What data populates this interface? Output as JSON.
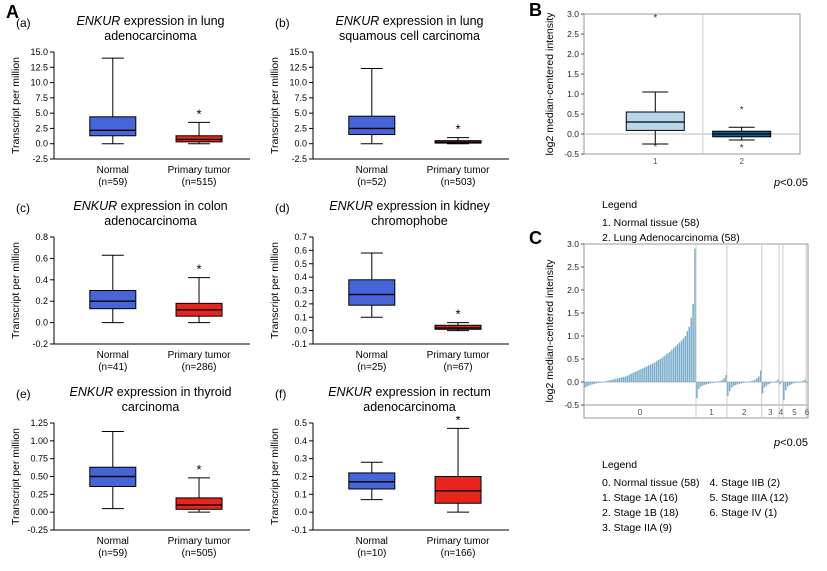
{
  "figure": {
    "panel_a_label": "A",
    "panel_b_label": "B",
    "panel_c_label": "C"
  },
  "colors": {
    "normal_box": "#4565d8",
    "tumor_box": "#e8251d",
    "b_box_1": "#b9d7ea",
    "b_box_2": "#175f8f",
    "c_bars": "#76abc9",
    "frame_gray": "#999999"
  },
  "chart_data": [
    {
      "id": "a",
      "type": "boxplot",
      "panel": "A",
      "label": "(a)",
      "title_gene": "ENKUR",
      "title_rest": " expression in lung adenocarcinoma",
      "ylabel": "Transcript per million",
      "ylim": [
        -2.5,
        15.0
      ],
      "yticks": [
        15.0,
        12.5,
        10.0,
        7.5,
        5.0,
        2.5,
        0.0,
        -2.5
      ],
      "ytick_decimals": 1,
      "groups": [
        {
          "label": "Normal",
          "sublabel": "(n=59)",
          "color": "#4565d8",
          "whisker_low": 0.0,
          "q1": 1.3,
          "median": 2.2,
          "q3": 4.4,
          "whisker_high": 14.0,
          "significant": false
        },
        {
          "label": "Primary tumor",
          "sublabel": "(n=515)",
          "color": "#e8251d",
          "whisker_low": 0.0,
          "q1": 0.3,
          "median": 0.7,
          "q3": 1.3,
          "whisker_high": 3.5,
          "significant": true
        }
      ]
    },
    {
      "id": "b",
      "type": "boxplot",
      "panel": "A",
      "label": "(b)",
      "title_gene": "ENKUR",
      "title_rest": " expression in lung squamous cell carcinoma",
      "ylabel": "Transcript per million",
      "ylim": [
        -2.5,
        15.0
      ],
      "yticks": [
        15.0,
        12.5,
        10.0,
        7.5,
        5.0,
        2.5,
        0.0,
        -2.5
      ],
      "ytick_decimals": 1,
      "groups": [
        {
          "label": "Normal",
          "sublabel": "(n=52)",
          "color": "#4565d8",
          "whisker_low": 0.0,
          "q1": 1.5,
          "median": 2.5,
          "q3": 4.5,
          "whisker_high": 12.3,
          "significant": false
        },
        {
          "label": "Primary tumor",
          "sublabel": "(n=503)",
          "color": "#e8251d",
          "whisker_low": 0.0,
          "q1": 0.1,
          "median": 0.25,
          "q3": 0.5,
          "whisker_high": 1.0,
          "significant": true
        }
      ]
    },
    {
      "id": "c",
      "type": "boxplot",
      "panel": "A",
      "label": "(c)",
      "title_gene": "ENKUR",
      "title_rest": " expression in colon adenocarcinoma",
      "ylabel": "Transcript per million",
      "ylim": [
        -0.2,
        0.8
      ],
      "yticks": [
        0.8,
        0.6,
        0.4,
        0.2,
        0.0,
        -0.2
      ],
      "ytick_decimals": 1,
      "groups": [
        {
          "label": "Normal",
          "sublabel": "(n=41)",
          "color": "#4565d8",
          "whisker_low": 0.0,
          "q1": 0.13,
          "median": 0.2,
          "q3": 0.3,
          "whisker_high": 0.63,
          "significant": false
        },
        {
          "label": "Primary tumor",
          "sublabel": "(n=286)",
          "color": "#e8251d",
          "whisker_low": 0.0,
          "q1": 0.06,
          "median": 0.12,
          "q3": 0.18,
          "whisker_high": 0.42,
          "significant": true
        }
      ]
    },
    {
      "id": "d",
      "type": "boxplot",
      "panel": "A",
      "label": "(d)",
      "title_gene": "ENKUR",
      "title_rest": " expression in kidney chromophobe",
      "ylabel": "Transcript per million",
      "ylim": [
        -0.1,
        0.7
      ],
      "yticks": [
        0.7,
        0.6,
        0.5,
        0.4,
        0.3,
        0.2,
        0.1,
        0.0,
        -0.1
      ],
      "ytick_decimals": 1,
      "groups": [
        {
          "label": "Normal",
          "sublabel": "(n=25)",
          "color": "#4565d8",
          "whisker_low": 0.1,
          "q1": 0.19,
          "median": 0.27,
          "q3": 0.38,
          "whisker_high": 0.58,
          "significant": false
        },
        {
          "label": "Primary tumor",
          "sublabel": "(n=67)",
          "color": "#e8251d",
          "whisker_low": 0.0,
          "q1": 0.01,
          "median": 0.02,
          "q3": 0.04,
          "whisker_high": 0.06,
          "significant": true
        }
      ]
    },
    {
      "id": "e",
      "type": "boxplot",
      "panel": "A",
      "label": "(e)",
      "title_gene": "ENKUR",
      "title_rest": " expression in thyroid carcinoma",
      "ylabel": "Transcript per million",
      "ylim": [
        -0.25,
        1.25
      ],
      "yticks": [
        1.25,
        1.0,
        0.75,
        0.5,
        0.25,
        0.0,
        -0.25
      ],
      "ytick_decimals": 2,
      "groups": [
        {
          "label": "Normal",
          "sublabel": "(n=59)",
          "color": "#4565d8",
          "whisker_low": 0.05,
          "q1": 0.36,
          "median": 0.5,
          "q3": 0.63,
          "whisker_high": 1.13,
          "significant": false
        },
        {
          "label": "Primary tumor",
          "sublabel": "(n=505)",
          "color": "#e8251d",
          "whisker_low": 0.0,
          "q1": 0.04,
          "median": 0.1,
          "q3": 0.2,
          "whisker_high": 0.48,
          "significant": true
        }
      ]
    },
    {
      "id": "f",
      "type": "boxplot",
      "panel": "A",
      "label": "(f)",
      "title_gene": "ENKUR",
      "title_rest": " expression in rectum adenocarcinoma",
      "ylabel": "Transcript per million",
      "ylim": [
        -0.1,
        0.5
      ],
      "yticks": [
        0.5,
        0.4,
        0.3,
        0.2,
        0.1,
        0.0,
        -0.1
      ],
      "ytick_decimals": 1,
      "groups": [
        {
          "label": "Normal",
          "sublabel": "(n=10)",
          "color": "#4565d8",
          "whisker_low": 0.07,
          "q1": 0.13,
          "median": 0.17,
          "q3": 0.22,
          "whisker_high": 0.28,
          "significant": false
        },
        {
          "label": "Primary tumor",
          "sublabel": "(n=166)",
          "color": "#e8251d",
          "whisker_low": 0.0,
          "q1": 0.05,
          "median": 0.12,
          "q3": 0.2,
          "whisker_high": 0.47,
          "significant": true
        }
      ]
    },
    {
      "id": "pb",
      "type": "boxplot",
      "panel": "B",
      "ylabel": "log2 median-centered intensity",
      "ylim": [
        -0.5,
        3.0
      ],
      "yticks": [
        3.0,
        2.5,
        2.0,
        1.5,
        1.0,
        0.5,
        0.0,
        -0.5
      ],
      "ytick_decimals": 1,
      "pvalue_italic": "p",
      "pvalue_rest": "<0.05",
      "legend_title": "Legend",
      "legend": [
        "1. Normal tissue (58)",
        "2. Lung Adenocarcinoma (58)"
      ],
      "groups": [
        {
          "label": "1",
          "color": "#b9d7ea",
          "whisker_low": -0.25,
          "q1": 0.09,
          "median": 0.3,
          "q3": 0.55,
          "whisker_high": 1.05,
          "outliers": [
            2.9,
            -0.33
          ]
        },
        {
          "label": "2",
          "color": "#175f8f",
          "whisker_low": -0.15,
          "q1": -0.07,
          "median": 0.0,
          "q3": 0.07,
          "whisker_high": 0.17,
          "outliers": [
            0.6,
            -0.35
          ]
        }
      ]
    },
    {
      "id": "pc",
      "type": "bar",
      "panel": "C",
      "ylabel": "log2 median-centered intensity",
      "ylim": [
        -0.5,
        3.0
      ],
      "yticks": [
        3.0,
        2.5,
        2.0,
        1.5,
        1.0,
        0.5,
        0.0,
        -0.5
      ],
      "ytick_decimals": 1,
      "bar_color": "#76abc9",
      "pvalue_italic": "p",
      "pvalue_rest": "<0.05",
      "legend_title": "Legend",
      "legend_col1": [
        "0. Normal tissue (58)",
        "1. Stage 1A (16)",
        "2. Stage 1B (18)",
        "3. Stage IIA (9)"
      ],
      "legend_col2": [
        "4. Stage IIB (2)",
        "5. Stage IIIA (12)",
        "6. Stage IV (1)"
      ],
      "groups": [
        {
          "label": "0",
          "values": [
            -0.12,
            -0.1,
            -0.08,
            -0.06,
            -0.05,
            -0.04,
            -0.03,
            -0.02,
            -0.01,
            0.0,
            0.01,
            0.02,
            0.03,
            0.04,
            0.05,
            0.06,
            0.07,
            0.08,
            0.09,
            0.1,
            0.11,
            0.12,
            0.14,
            0.16,
            0.18,
            0.2,
            0.22,
            0.24,
            0.26,
            0.28,
            0.3,
            0.32,
            0.34,
            0.36,
            0.38,
            0.4,
            0.42,
            0.45,
            0.48,
            0.5,
            0.53,
            0.56,
            0.6,
            0.63,
            0.66,
            0.7,
            0.74,
            0.78,
            0.82,
            0.86,
            0.9,
            0.95,
            1.0,
            1.1,
            1.2,
            1.4,
            1.7,
            2.9
          ]
        },
        {
          "label": "1",
          "values": [
            -0.35,
            -0.15,
            -0.1,
            -0.08,
            -0.06,
            -0.05,
            -0.04,
            -0.03,
            -0.02,
            -0.01,
            0.0,
            0.01,
            0.02,
            0.04,
            0.08,
            0.15
          ]
        },
        {
          "label": "2",
          "values": [
            -0.3,
            -0.2,
            -0.12,
            -0.09,
            -0.07,
            -0.05,
            -0.04,
            -0.03,
            -0.02,
            -0.01,
            0.0,
            0.01,
            0.02,
            0.03,
            0.05,
            0.08,
            0.12,
            0.25
          ]
        },
        {
          "label": "3",
          "values": [
            -0.25,
            -0.12,
            -0.08,
            -0.05,
            -0.03,
            -0.01,
            0.0,
            0.02,
            0.05
          ]
        },
        {
          "label": "4",
          "values": [
            -0.05,
            0.02
          ]
        },
        {
          "label": "5",
          "values": [
            -0.4,
            -0.18,
            -0.1,
            -0.07,
            -0.05,
            -0.03,
            -0.02,
            -0.01,
            0.0,
            0.01,
            0.03,
            0.06
          ]
        },
        {
          "label": "6",
          "values": [
            -0.02
          ]
        }
      ]
    }
  ]
}
